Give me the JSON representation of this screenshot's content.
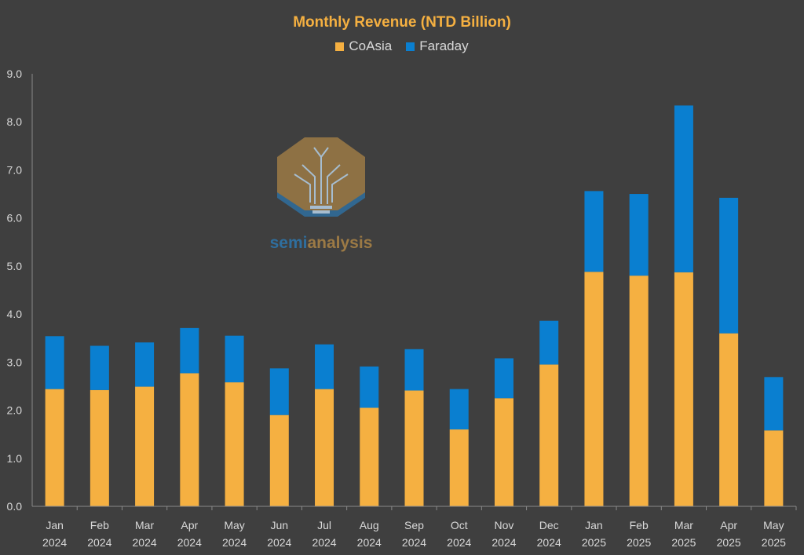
{
  "chart_data": {
    "type": "bar",
    "stacked": true,
    "title": "Monthly Revenue (NTD Billion)",
    "xlabel": "",
    "ylabel": "",
    "ylim": [
      0,
      9
    ],
    "yticks": [
      "0.0",
      "1.0",
      "2.0",
      "3.0",
      "4.0",
      "5.0",
      "6.0",
      "7.0",
      "8.0",
      "9.0"
    ],
    "grid": false,
    "legend_position": "top",
    "categories": [
      [
        "Jan",
        "2024"
      ],
      [
        "Feb",
        "2024"
      ],
      [
        "Mar",
        "2024"
      ],
      [
        "Apr",
        "2024"
      ],
      [
        "May",
        "2024"
      ],
      [
        "Jun",
        "2024"
      ],
      [
        "Jul",
        "2024"
      ],
      [
        "Aug",
        "2024"
      ],
      [
        "Sep",
        "2024"
      ],
      [
        "Oct",
        "2024"
      ],
      [
        "Nov",
        "2024"
      ],
      [
        "Dec",
        "2024"
      ],
      [
        "Jan",
        "2025"
      ],
      [
        "Feb",
        "2025"
      ],
      [
        "Mar",
        "2025"
      ],
      [
        "Apr",
        "2025"
      ],
      [
        "May",
        "2025"
      ]
    ],
    "series": [
      {
        "name": "CoAsia",
        "color": "#f5b041",
        "values": [
          2.44,
          2.42,
          2.49,
          2.77,
          2.58,
          1.9,
          2.44,
          2.05,
          2.41,
          1.6,
          2.25,
          2.95,
          4.88,
          4.8,
          4.87,
          3.6,
          1.58
        ]
      },
      {
        "name": "Faraday",
        "color": "#0a7fd0",
        "values": [
          1.1,
          0.92,
          0.92,
          0.94,
          0.97,
          0.97,
          0.93,
          0.86,
          0.86,
          0.84,
          0.83,
          0.91,
          1.68,
          1.7,
          3.47,
          2.82,
          1.11
        ]
      }
    ]
  },
  "colors": {
    "background": "#3f3f3f",
    "axis": "#8a8a8a",
    "text": "#d9d9d9",
    "title": "#f5b041"
  },
  "watermark": {
    "brand_text_part1": "semi",
    "brand_text_part2": "analysis",
    "icon": "semianalysis-logo-icon"
  }
}
